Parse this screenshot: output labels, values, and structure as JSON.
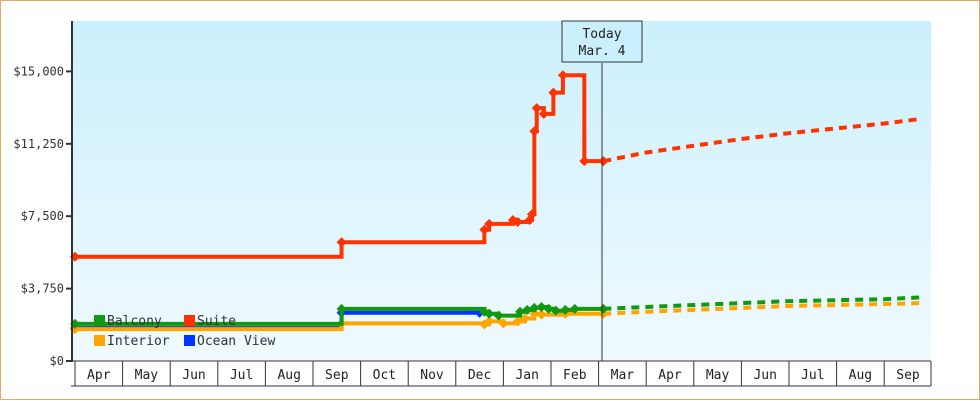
{
  "chart_data": {
    "type": "line",
    "title": "",
    "xlabel": "",
    "ylabel": "",
    "ylim": [
      0,
      17500
    ],
    "y_ticks": [
      "$0",
      "$3,750",
      "$7,500",
      "$11,250",
      "$15,000"
    ],
    "y_tick_values": [
      0,
      3750,
      7500,
      11250,
      15000
    ],
    "x_ticks": [
      "Apr",
      "May",
      "Jun",
      "Jul",
      "Aug",
      "Sep",
      "Oct",
      "Nov",
      "Dec",
      "Jan",
      "Feb",
      "Mar",
      "Apr",
      "May",
      "Jun",
      "Jul",
      "Aug",
      "Sep"
    ],
    "grid": false,
    "legend_position": "lower-left inside",
    "today_marker": {
      "line1": "Today",
      "line2": "Mar. 4",
      "month_index": 11.1
    },
    "series": [
      {
        "name": "Balcony",
        "color": "#119911",
        "historical": [
          [
            0,
            1920
          ],
          [
            5.6,
            1920
          ],
          [
            5.6,
            2700
          ],
          [
            8.55,
            2700
          ],
          [
            8.6,
            2550
          ],
          [
            8.7,
            2450
          ],
          [
            8.9,
            2350
          ],
          [
            9.2,
            2350
          ],
          [
            9.35,
            2550
          ],
          [
            9.5,
            2650
          ],
          [
            9.65,
            2750
          ],
          [
            9.8,
            2800
          ],
          [
            9.95,
            2700
          ],
          [
            10.1,
            2600
          ],
          [
            10.3,
            2650
          ],
          [
            10.5,
            2700
          ],
          [
            11.1,
            2700
          ]
        ],
        "forecast": [
          [
            11.1,
            2700
          ],
          [
            12,
            2800
          ],
          [
            13,
            2900
          ],
          [
            14,
            3000
          ],
          [
            15,
            3100
          ],
          [
            16,
            3150
          ],
          [
            17,
            3200
          ],
          [
            17.8,
            3300
          ]
        ]
      },
      {
        "name": "Suite",
        "color": "#ff3300",
        "historical": [
          [
            0,
            5400
          ],
          [
            5.6,
            5400
          ],
          [
            5.6,
            6150
          ],
          [
            8.5,
            6150
          ],
          [
            8.6,
            6800
          ],
          [
            8.7,
            7100
          ],
          [
            9.0,
            7100
          ],
          [
            9.2,
            7300
          ],
          [
            9.3,
            7200
          ],
          [
            9.55,
            7300
          ],
          [
            9.6,
            7600
          ],
          [
            9.65,
            11900
          ],
          [
            9.7,
            13100
          ],
          [
            9.8,
            13100
          ],
          [
            9.85,
            12800
          ],
          [
            10.0,
            12800
          ],
          [
            10.05,
            13900
          ],
          [
            10.2,
            13900
          ],
          [
            10.25,
            14800
          ],
          [
            10.7,
            14800
          ],
          [
            10.7,
            10350
          ],
          [
            11.1,
            10350
          ]
        ],
        "forecast": [
          [
            11.1,
            10350
          ],
          [
            12,
            10800
          ],
          [
            13,
            11150
          ],
          [
            14,
            11500
          ],
          [
            15,
            11800
          ],
          [
            16,
            12050
          ],
          [
            17,
            12300
          ],
          [
            17.8,
            12550
          ]
        ]
      },
      {
        "name": "Interior",
        "color": "#ffa500",
        "historical": [
          [
            0,
            1650
          ],
          [
            5.6,
            1650
          ],
          [
            5.6,
            1950
          ],
          [
            8.5,
            1950
          ],
          [
            8.6,
            1900
          ],
          [
            8.7,
            2050
          ],
          [
            9.0,
            1950
          ],
          [
            9.3,
            2050
          ],
          [
            9.45,
            2200
          ],
          [
            9.65,
            2450
          ],
          [
            9.8,
            2400
          ],
          [
            10.0,
            2400
          ],
          [
            10.3,
            2450
          ],
          [
            10.5,
            2450
          ],
          [
            11.1,
            2450
          ]
        ],
        "forecast": [
          [
            11.1,
            2450
          ],
          [
            12,
            2550
          ],
          [
            13,
            2650
          ],
          [
            14,
            2750
          ],
          [
            15,
            2850
          ],
          [
            16,
            2900
          ],
          [
            17,
            2950
          ],
          [
            17.8,
            3000
          ]
        ]
      },
      {
        "name": "Ocean View",
        "color": "#0033ff",
        "historical": [
          [
            0,
            1700
          ],
          [
            5.6,
            1700
          ],
          [
            5.6,
            2500
          ],
          [
            8.5,
            2500
          ]
        ],
        "forecast": []
      }
    ]
  },
  "legend": {
    "items": [
      {
        "label": "Balcony",
        "color": "#119911"
      },
      {
        "label": "Suite",
        "color": "#ff3300"
      },
      {
        "label": "Interior",
        "color": "#ffa500"
      },
      {
        "label": "Ocean View",
        "color": "#0033ff"
      }
    ]
  },
  "today": {
    "line1": "Today",
    "line2": "Mar. 4"
  }
}
